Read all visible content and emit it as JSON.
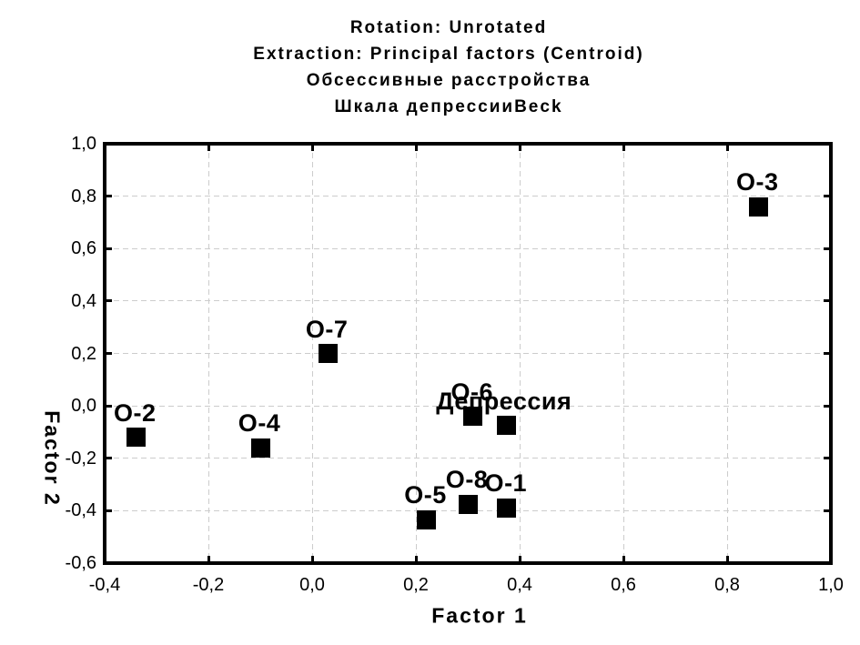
{
  "chart_data": {
    "type": "scatter",
    "title_lines": [
      "Rotation: Unrotated",
      "Extraction: Principal factors (Centroid)",
      "Обсессивные расстройства",
      "Шкала депрессииBeck"
    ],
    "xlabel": "Factor 1",
    "ylabel": "Factor 2",
    "xlim": [
      -0.4,
      1.0
    ],
    "ylim": [
      -0.6,
      1.0
    ],
    "x_ticks": [
      {
        "label": "-0,4",
        "value": -0.4
      },
      {
        "label": "-0,2",
        "value": -0.2
      },
      {
        "label": "0,0",
        "value": 0.0
      },
      {
        "label": "0,2",
        "value": 0.2
      },
      {
        "label": "0,4",
        "value": 0.4
      },
      {
        "label": "0,6",
        "value": 0.6
      },
      {
        "label": "0,8",
        "value": 0.8
      },
      {
        "label": "1,0",
        "value": 1.0
      }
    ],
    "y_ticks": [
      {
        "label": "1,0",
        "value": 1.0
      },
      {
        "label": "0,8",
        "value": 0.8
      },
      {
        "label": "0,6",
        "value": 0.6
      },
      {
        "label": "0,4",
        "value": 0.4
      },
      {
        "label": "0,2",
        "value": 0.2
      },
      {
        "label": "0,0",
        "value": 0.0
      },
      {
        "label": "-0,2",
        "value": -0.2
      },
      {
        "label": "-0,4",
        "value": -0.4
      },
      {
        "label": "-0,6",
        "value": -0.6
      }
    ],
    "points": [
      {
        "label": "O-2",
        "x": -0.34,
        "y": -0.12
      },
      {
        "label": "O-4",
        "x": -0.1,
        "y": -0.16
      },
      {
        "label": "O-7",
        "x": 0.03,
        "y": 0.2
      },
      {
        "label": "O-6",
        "x": 0.31,
        "y": -0.04
      },
      {
        "label": "Депрессия",
        "x": 0.375,
        "y": -0.075
      },
      {
        "label": "O-3",
        "x": 0.86,
        "y": 0.76
      },
      {
        "label": "O-5",
        "x": 0.22,
        "y": -0.435
      },
      {
        "label": "O-8",
        "x": 0.3,
        "y": -0.375
      },
      {
        "label": "O-1",
        "x": 0.375,
        "y": -0.39
      }
    ],
    "grid": "dashed",
    "legend": "none",
    "marker": "filled-square",
    "colors": {
      "marker": "#000000",
      "text": "#000000",
      "grid": "#cccccc",
      "frame": "#000000",
      "background": "#ffffff"
    }
  }
}
